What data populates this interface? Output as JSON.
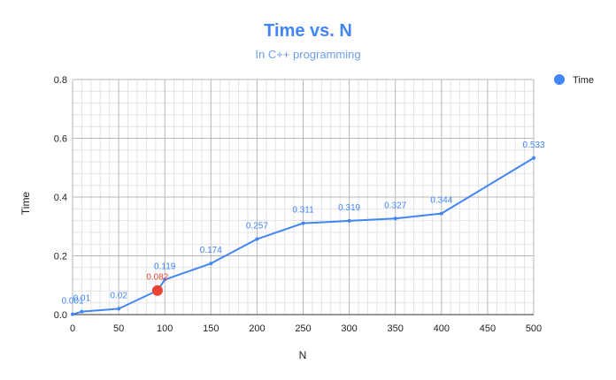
{
  "chart_data": {
    "type": "line",
    "title": "Time vs. N",
    "subtitle": "In C++ programming",
    "xlabel": "N",
    "ylabel": "Time",
    "xlim": [
      0,
      500
    ],
    "ylim": [
      0,
      0.8
    ],
    "x_ticks": [
      "0",
      "50",
      "100",
      "150",
      "200",
      "250",
      "300",
      "350",
      "400",
      "450",
      "500"
    ],
    "y_ticks": [
      "0.0",
      "0.2",
      "0.4",
      "0.6",
      "0.8"
    ],
    "grid": true,
    "legend_position": "right",
    "series": [
      {
        "name": "Time",
        "color": "#4285f4",
        "x": [
          0,
          10,
          50,
          92,
          100,
          150,
          200,
          250,
          300,
          350,
          400,
          500
        ],
        "y": [
          0.001,
          0.01,
          0.02,
          0.082,
          0.119,
          0.174,
          0.257,
          0.311,
          0.319,
          0.327,
          0.344,
          0.533
        ],
        "labels": [
          "0.001",
          "0.01",
          "0.02",
          "0.082",
          "0.119",
          "0.174",
          "0.257",
          "0.311",
          "0.319",
          "0.327",
          "0.344",
          "0.533"
        ],
        "highlight_index": 3,
        "highlight_color": "#ea4335"
      }
    ]
  }
}
